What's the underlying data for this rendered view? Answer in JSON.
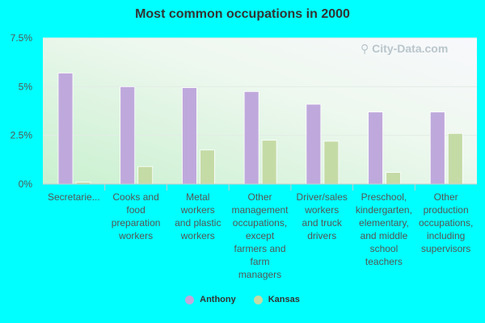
{
  "chart_data": {
    "type": "bar",
    "title": "Most common occupations in 2000",
    "categories": [
      [
        "Secretarie..."
      ],
      [
        "Cooks and",
        "food",
        "preparation",
        "workers"
      ],
      [
        "Metal",
        "workers",
        "and plastic",
        "workers"
      ],
      [
        "Other",
        "management",
        "occupations,",
        "except",
        "farmers and",
        "farm",
        "managers"
      ],
      [
        "Driver/sales",
        "workers",
        "and truck",
        "drivers"
      ],
      [
        "Preschool,",
        "kindergarten,",
        "elementary,",
        "and middle",
        "school",
        "teachers"
      ],
      [
        "Other",
        "production",
        "occupations,",
        "including",
        "supervisors"
      ]
    ],
    "series": [
      {
        "name": "Anthony",
        "color": "#BFA9DC",
        "values": [
          5.7,
          5.0,
          4.95,
          4.75,
          4.1,
          3.7,
          3.7
        ]
      },
      {
        "name": "Kansas",
        "color": "#C4DBA6",
        "values": [
          0.1,
          0.9,
          1.75,
          2.25,
          2.2,
          0.6,
          2.6
        ]
      }
    ],
    "yticks": [
      "0%",
      "2.5%",
      "5%",
      "7.5%"
    ],
    "ytick_values": [
      0,
      2.5,
      5,
      7.5
    ],
    "ylim": [
      0,
      7.5
    ],
    "legend_position": "bottom",
    "grid": true
  },
  "watermark": "City-Data.com"
}
